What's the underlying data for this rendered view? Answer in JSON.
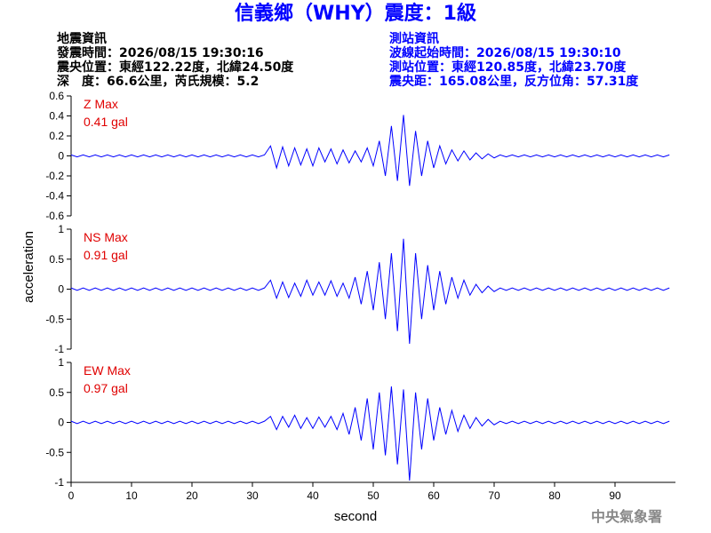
{
  "header": {
    "title": "信義鄉（WHY）震度：1級",
    "left": [
      "地震資訊",
      "發震時間：2026/08/15 19:30:16",
      "震央位置：東經122.22度，北緯24.50度",
      "深　度：66.6公里，芮氏規模：5.2"
    ],
    "right": [
      "測站資訊",
      "波線起始時間：2026/08/15 19:30:10",
      "測站位置：東經120.85度，北緯23.70度",
      "震央距：165.08公里，反方位角：57.31度"
    ],
    "footer": "中央氣象署"
  },
  "chart_data": [
    {
      "type": "line",
      "color": "#0000ff",
      "annotations": [
        "Z Max",
        "0.41 gal"
      ],
      "xlim": [
        0,
        100
      ],
      "ylim": [
        -0.6,
        0.6
      ],
      "yticks": [
        0.6,
        0.4,
        0.2,
        0,
        -0.2,
        -0.4,
        -0.6
      ],
      "x": [
        0,
        1,
        2,
        3,
        4,
        5,
        6,
        7,
        8,
        9,
        10,
        11,
        12,
        13,
        14,
        15,
        16,
        17,
        18,
        19,
        20,
        21,
        22,
        23,
        24,
        25,
        26,
        27,
        28,
        29,
        30,
        31,
        32,
        33,
        34,
        35,
        36,
        37,
        38,
        39,
        40,
        41,
        42,
        43,
        44,
        45,
        46,
        47,
        48,
        49,
        50,
        51,
        52,
        53,
        54,
        55,
        56,
        57,
        58,
        59,
        60,
        61,
        62,
        63,
        64,
        65,
        66,
        67,
        68,
        69,
        70,
        71,
        72,
        73,
        74,
        75,
        76,
        77,
        78,
        79,
        80,
        81,
        82,
        83,
        84,
        85,
        86,
        87,
        88,
        89,
        90,
        91,
        92,
        93,
        94,
        95,
        96,
        97,
        98,
        99
      ],
      "values": [
        0.01,
        -0.01,
        0.01,
        -0.01,
        0.01,
        -0.01,
        0.01,
        -0.01,
        0.01,
        -0.01,
        0.01,
        -0.01,
        0.01,
        -0.01,
        0.01,
        -0.01,
        0.01,
        -0.01,
        0.01,
        -0.01,
        0.01,
        -0.01,
        0.01,
        -0.01,
        0.01,
        -0.01,
        0.01,
        -0.01,
        0.01,
        -0.01,
        0.01,
        -0.01,
        0.01,
        0.1,
        -0.12,
        0.09,
        -0.1,
        0.08,
        -0.09,
        0.07,
        -0.1,
        0.08,
        -0.06,
        0.07,
        -0.08,
        0.06,
        -0.07,
        0.05,
        -0.06,
        0.08,
        -0.1,
        0.15,
        -0.2,
        0.3,
        -0.25,
        0.41,
        -0.3,
        0.25,
        -0.2,
        0.15,
        -0.12,
        0.1,
        -0.08,
        0.06,
        -0.05,
        0.05,
        -0.04,
        0.03,
        -0.03,
        0.02,
        -0.02,
        0.01,
        -0.01,
        0.01,
        -0.01,
        0.01,
        -0.01,
        0.01,
        -0.01,
        0.01,
        -0.01,
        0.01,
        -0.01,
        0.01,
        -0.01,
        0.01,
        -0.01,
        0.01,
        -0.01,
        0.01,
        -0.01,
        0.01,
        -0.01,
        0.01,
        -0.01,
        0.01,
        -0.01,
        0.01,
        -0.01,
        0.01
      ]
    },
    {
      "type": "line",
      "color": "#0000ff",
      "annotations": [
        "NS Max",
        "0.91 gal"
      ],
      "ylabel": "acceleration",
      "xlim": [
        0,
        100
      ],
      "ylim": [
        -1,
        1
      ],
      "yticks": [
        1,
        0.5,
        0,
        -0.5,
        -1
      ],
      "x": [
        0,
        1,
        2,
        3,
        4,
        5,
        6,
        7,
        8,
        9,
        10,
        11,
        12,
        13,
        14,
        15,
        16,
        17,
        18,
        19,
        20,
        21,
        22,
        23,
        24,
        25,
        26,
        27,
        28,
        29,
        30,
        31,
        32,
        33,
        34,
        35,
        36,
        37,
        38,
        39,
        40,
        41,
        42,
        43,
        44,
        45,
        46,
        47,
        48,
        49,
        50,
        51,
        52,
        53,
        54,
        55,
        56,
        57,
        58,
        59,
        60,
        61,
        62,
        63,
        64,
        65,
        66,
        67,
        68,
        69,
        70,
        71,
        72,
        73,
        74,
        75,
        76,
        77,
        78,
        79,
        80,
        81,
        82,
        83,
        84,
        85,
        86,
        87,
        88,
        89,
        90,
        91,
        92,
        93,
        94,
        95,
        96,
        97,
        98,
        99
      ],
      "values": [
        0.02,
        -0.02,
        0.02,
        -0.02,
        0.02,
        -0.02,
        0.02,
        -0.02,
        0.02,
        -0.02,
        0.02,
        -0.02,
        0.02,
        -0.02,
        0.02,
        -0.02,
        0.02,
        -0.02,
        0.02,
        -0.02,
        0.02,
        -0.02,
        0.02,
        -0.02,
        0.02,
        -0.02,
        0.02,
        -0.02,
        0.02,
        -0.02,
        0.02,
        -0.02,
        0.02,
        0.15,
        -0.15,
        0.12,
        -0.14,
        0.1,
        -0.12,
        0.15,
        -0.1,
        0.12,
        -0.1,
        0.14,
        -0.12,
        0.1,
        -0.15,
        0.2,
        -0.25,
        0.3,
        -0.35,
        0.45,
        -0.5,
        0.6,
        -0.7,
        0.84,
        -0.91,
        0.6,
        -0.5,
        0.4,
        -0.35,
        0.3,
        -0.25,
        0.2,
        -0.15,
        0.15,
        -0.1,
        0.08,
        -0.06,
        0.05,
        -0.04,
        0.02,
        -0.02,
        0.02,
        -0.02,
        0.02,
        -0.02,
        0.02,
        -0.02,
        0.02,
        -0.02,
        0.02,
        -0.02,
        0.02,
        -0.02,
        0.02,
        -0.02,
        0.02,
        -0.02,
        0.02,
        -0.02,
        0.02,
        -0.02,
        0.02,
        -0.02,
        0.02,
        -0.02,
        0.02,
        -0.02,
        0.02
      ]
    },
    {
      "type": "line",
      "color": "#0000ff",
      "annotations": [
        "EW Max",
        "0.97 gal"
      ],
      "xlabel": "second",
      "xlim": [
        0,
        100
      ],
      "xticks": [
        0,
        10,
        20,
        30,
        40,
        50,
        60,
        70,
        80,
        90
      ],
      "ylim": [
        -1,
        1
      ],
      "yticks": [
        1,
        0.5,
        0,
        -0.5,
        -1
      ],
      "x": [
        0,
        1,
        2,
        3,
        4,
        5,
        6,
        7,
        8,
        9,
        10,
        11,
        12,
        13,
        14,
        15,
        16,
        17,
        18,
        19,
        20,
        21,
        22,
        23,
        24,
        25,
        26,
        27,
        28,
        29,
        30,
        31,
        32,
        33,
        34,
        35,
        36,
        37,
        38,
        39,
        40,
        41,
        42,
        43,
        44,
        45,
        46,
        47,
        48,
        49,
        50,
        51,
        52,
        53,
        54,
        55,
        56,
        57,
        58,
        59,
        60,
        61,
        62,
        63,
        64,
        65,
        66,
        67,
        68,
        69,
        70,
        71,
        72,
        73,
        74,
        75,
        76,
        77,
        78,
        79,
        80,
        81,
        82,
        83,
        84,
        85,
        86,
        87,
        88,
        89,
        90,
        91,
        92,
        93,
        94,
        95,
        96,
        97,
        98,
        99
      ],
      "values": [
        0.02,
        -0.02,
        0.02,
        -0.02,
        0.02,
        -0.02,
        0.02,
        -0.02,
        0.02,
        -0.02,
        0.02,
        -0.02,
        0.02,
        -0.02,
        0.02,
        -0.02,
        0.02,
        -0.02,
        0.02,
        -0.02,
        0.02,
        -0.02,
        0.02,
        -0.02,
        0.02,
        -0.02,
        0.02,
        -0.02,
        0.02,
        -0.02,
        0.02,
        -0.02,
        0.02,
        0.1,
        -0.12,
        0.1,
        -0.08,
        0.12,
        -0.1,
        0.08,
        -0.1,
        0.09,
        -0.08,
        0.1,
        -0.12,
        0.15,
        -0.2,
        0.25,
        -0.3,
        0.4,
        -0.45,
        0.5,
        -0.55,
        0.6,
        -0.7,
        0.55,
        -0.97,
        0.5,
        -0.45,
        0.4,
        -0.3,
        0.25,
        -0.2,
        0.2,
        -0.15,
        0.12,
        -0.1,
        0.08,
        -0.06,
        0.05,
        -0.04,
        0.02,
        -0.02,
        0.02,
        -0.02,
        0.02,
        -0.02,
        0.02,
        -0.02,
        0.02,
        -0.02,
        0.02,
        -0.02,
        0.02,
        -0.02,
        0.02,
        -0.02,
        0.02,
        -0.02,
        0.02,
        -0.02,
        0.02,
        -0.02,
        0.02,
        -0.02,
        0.02,
        -0.02,
        0.02,
        -0.02,
        0.02
      ]
    }
  ]
}
